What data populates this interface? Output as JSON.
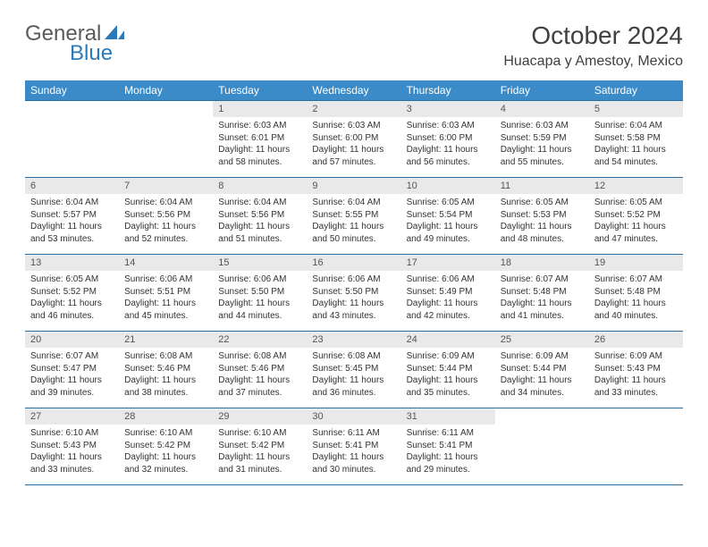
{
  "logo": {
    "text_a": "General",
    "text_b": "Blue"
  },
  "header": {
    "title": "October 2024",
    "location": "Huacapa y Amestoy, Mexico"
  },
  "colors": {
    "header_bg": "#3b8bc8",
    "header_text": "#ffffff",
    "border": "#2a6ea0",
    "daynum_bg": "#e9e9e9",
    "text": "#333333",
    "logo_gray": "#5a5a5a",
    "logo_blue": "#2a7ab9"
  },
  "weekdays": [
    "Sunday",
    "Monday",
    "Tuesday",
    "Wednesday",
    "Thursday",
    "Friday",
    "Saturday"
  ],
  "weeks": [
    [
      null,
      null,
      {
        "n": "1",
        "sr": "Sunrise: 6:03 AM",
        "ss": "Sunset: 6:01 PM",
        "dl": "Daylight: 11 hours and 58 minutes."
      },
      {
        "n": "2",
        "sr": "Sunrise: 6:03 AM",
        "ss": "Sunset: 6:00 PM",
        "dl": "Daylight: 11 hours and 57 minutes."
      },
      {
        "n": "3",
        "sr": "Sunrise: 6:03 AM",
        "ss": "Sunset: 6:00 PM",
        "dl": "Daylight: 11 hours and 56 minutes."
      },
      {
        "n": "4",
        "sr": "Sunrise: 6:03 AM",
        "ss": "Sunset: 5:59 PM",
        "dl": "Daylight: 11 hours and 55 minutes."
      },
      {
        "n": "5",
        "sr": "Sunrise: 6:04 AM",
        "ss": "Sunset: 5:58 PM",
        "dl": "Daylight: 11 hours and 54 minutes."
      }
    ],
    [
      {
        "n": "6",
        "sr": "Sunrise: 6:04 AM",
        "ss": "Sunset: 5:57 PM",
        "dl": "Daylight: 11 hours and 53 minutes."
      },
      {
        "n": "7",
        "sr": "Sunrise: 6:04 AM",
        "ss": "Sunset: 5:56 PM",
        "dl": "Daylight: 11 hours and 52 minutes."
      },
      {
        "n": "8",
        "sr": "Sunrise: 6:04 AM",
        "ss": "Sunset: 5:56 PM",
        "dl": "Daylight: 11 hours and 51 minutes."
      },
      {
        "n": "9",
        "sr": "Sunrise: 6:04 AM",
        "ss": "Sunset: 5:55 PM",
        "dl": "Daylight: 11 hours and 50 minutes."
      },
      {
        "n": "10",
        "sr": "Sunrise: 6:05 AM",
        "ss": "Sunset: 5:54 PM",
        "dl": "Daylight: 11 hours and 49 minutes."
      },
      {
        "n": "11",
        "sr": "Sunrise: 6:05 AM",
        "ss": "Sunset: 5:53 PM",
        "dl": "Daylight: 11 hours and 48 minutes."
      },
      {
        "n": "12",
        "sr": "Sunrise: 6:05 AM",
        "ss": "Sunset: 5:52 PM",
        "dl": "Daylight: 11 hours and 47 minutes."
      }
    ],
    [
      {
        "n": "13",
        "sr": "Sunrise: 6:05 AM",
        "ss": "Sunset: 5:52 PM",
        "dl": "Daylight: 11 hours and 46 minutes."
      },
      {
        "n": "14",
        "sr": "Sunrise: 6:06 AM",
        "ss": "Sunset: 5:51 PM",
        "dl": "Daylight: 11 hours and 45 minutes."
      },
      {
        "n": "15",
        "sr": "Sunrise: 6:06 AM",
        "ss": "Sunset: 5:50 PM",
        "dl": "Daylight: 11 hours and 44 minutes."
      },
      {
        "n": "16",
        "sr": "Sunrise: 6:06 AM",
        "ss": "Sunset: 5:50 PM",
        "dl": "Daylight: 11 hours and 43 minutes."
      },
      {
        "n": "17",
        "sr": "Sunrise: 6:06 AM",
        "ss": "Sunset: 5:49 PM",
        "dl": "Daylight: 11 hours and 42 minutes."
      },
      {
        "n": "18",
        "sr": "Sunrise: 6:07 AM",
        "ss": "Sunset: 5:48 PM",
        "dl": "Daylight: 11 hours and 41 minutes."
      },
      {
        "n": "19",
        "sr": "Sunrise: 6:07 AM",
        "ss": "Sunset: 5:48 PM",
        "dl": "Daylight: 11 hours and 40 minutes."
      }
    ],
    [
      {
        "n": "20",
        "sr": "Sunrise: 6:07 AM",
        "ss": "Sunset: 5:47 PM",
        "dl": "Daylight: 11 hours and 39 minutes."
      },
      {
        "n": "21",
        "sr": "Sunrise: 6:08 AM",
        "ss": "Sunset: 5:46 PM",
        "dl": "Daylight: 11 hours and 38 minutes."
      },
      {
        "n": "22",
        "sr": "Sunrise: 6:08 AM",
        "ss": "Sunset: 5:46 PM",
        "dl": "Daylight: 11 hours and 37 minutes."
      },
      {
        "n": "23",
        "sr": "Sunrise: 6:08 AM",
        "ss": "Sunset: 5:45 PM",
        "dl": "Daylight: 11 hours and 36 minutes."
      },
      {
        "n": "24",
        "sr": "Sunrise: 6:09 AM",
        "ss": "Sunset: 5:44 PM",
        "dl": "Daylight: 11 hours and 35 minutes."
      },
      {
        "n": "25",
        "sr": "Sunrise: 6:09 AM",
        "ss": "Sunset: 5:44 PM",
        "dl": "Daylight: 11 hours and 34 minutes."
      },
      {
        "n": "26",
        "sr": "Sunrise: 6:09 AM",
        "ss": "Sunset: 5:43 PM",
        "dl": "Daylight: 11 hours and 33 minutes."
      }
    ],
    [
      {
        "n": "27",
        "sr": "Sunrise: 6:10 AM",
        "ss": "Sunset: 5:43 PM",
        "dl": "Daylight: 11 hours and 33 minutes."
      },
      {
        "n": "28",
        "sr": "Sunrise: 6:10 AM",
        "ss": "Sunset: 5:42 PM",
        "dl": "Daylight: 11 hours and 32 minutes."
      },
      {
        "n": "29",
        "sr": "Sunrise: 6:10 AM",
        "ss": "Sunset: 5:42 PM",
        "dl": "Daylight: 11 hours and 31 minutes."
      },
      {
        "n": "30",
        "sr": "Sunrise: 6:11 AM",
        "ss": "Sunset: 5:41 PM",
        "dl": "Daylight: 11 hours and 30 minutes."
      },
      {
        "n": "31",
        "sr": "Sunrise: 6:11 AM",
        "ss": "Sunset: 5:41 PM",
        "dl": "Daylight: 11 hours and 29 minutes."
      },
      null,
      null
    ]
  ]
}
